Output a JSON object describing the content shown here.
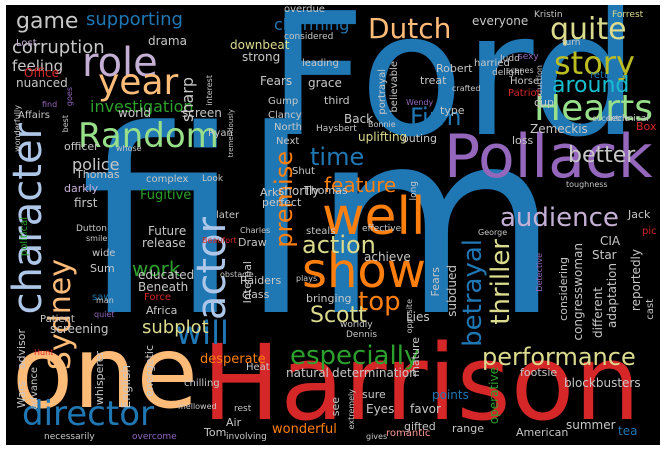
{
  "palette": {
    "background": "#000000",
    "blue": "#1f77b4",
    "light_blue": "#aec7e8",
    "orange": "#ff7f0e",
    "peach": "#ffbb78",
    "green": "#2ca02c",
    "light_green": "#98df8a",
    "red": "#d62728",
    "pink": "#ff9896",
    "purple": "#9467bd",
    "lavender": "#c5b0d5",
    "brown": "#8c564b",
    "tan": "#c49c94",
    "gray": "#7f7f7f",
    "light_gray": "#c7c7c7",
    "olive": "#bcbd22",
    "khaki": "#dbdb8d",
    "cyan": "#17becf",
    "light_cyan": "#9edae5",
    "magenta": "#e377c2"
  },
  "words": {
    "film": "film",
    "ford": "Ford",
    "harrison": "Harrison",
    "one": "one",
    "pollack": "Pollack",
    "show": "show",
    "well": "well",
    "director": "director",
    "character": "character",
    "role": "role",
    "year": "year",
    "random": "Random",
    "hearts": "Hearts",
    "story": "story",
    "quite": "quite",
    "dutch": "Dutch",
    "actor": "actor",
    "sydney": "Sydney",
    "will": "will",
    "action": "action",
    "performance": "performance",
    "especially": "especially",
    "thriller": "thriller",
    "betrayal": "betrayal",
    "audience": "audience",
    "time": "time",
    "top": "top",
    "scott": "Scott",
    "feature": "feature",
    "premise": "premise",
    "firm": "Firm",
    "around": "around",
    "game": "game",
    "supporting": "supporting",
    "charming": "charming",
    "corruption": "corruption",
    "subplot": "subplot",
    "work": "work",
    "better": "better",
    "police": "police",
    "investigation": "investigation",
    "feeling": "feeling",
    "affairs": "Affairs",
    "office": "Office",
    "lost": "Lost",
    "drama": "drama",
    "world": "world",
    "screen": "screen",
    "sharp": "sharp",
    "downbeat": "downbeat",
    "strong": "strong",
    "considered": "considered",
    "leading": "leading",
    "everyone": "everyone",
    "kristin": "Kristin",
    "forrest": "Forrest",
    "judd": "Judd",
    "harried": "harried",
    "scenes": "scenes",
    "sexy": "sexy",
    "turn": "turn",
    "returns": "returns",
    "robert": "Robert",
    "delight": "delight",
    "treat": "treat",
    "crafted": "crafted",
    "production": "production",
    "eccentric": "eccentric",
    "patriot": "Patriot",
    "horse": "Horse",
    "cup": "cup",
    "type": "type",
    "wendy": "Wendy",
    "believable": "believable",
    "portrayal": "portrayal",
    "third": "third",
    "grace": "grace",
    "fears": "Fears",
    "gump": "Gump",
    "ryan": "Ryan",
    "clancy": "Clancy",
    "north": "North",
    "back": "Back",
    "bonnie": "Bonnie",
    "haysbert": "Haysbert",
    "uplifting": "uplifting",
    "outing": "outing",
    "tremendously": "tremendously",
    "zemeckis": "Zemeckis",
    "loss": "loss",
    "technical": "technical",
    "box": "Box",
    "next": "Next",
    "shut": "Shut",
    "thomas": "Thomas",
    "officer": "officer",
    "darkly": "darkly",
    "first": "first",
    "fugitive": "Fugitive",
    "complex": "complex",
    "look": "Look",
    "ark": "Ark",
    "shortly": "shortly",
    "perfect": "perfect",
    "long": "long",
    "jack": "Jack",
    "george": "George",
    "pic": "pic",
    "toughness": "toughness",
    "interest": "interest",
    "whose": "whose",
    "find": "find",
    "best": "best",
    "dutton": "Dutton",
    "patient": "Patient",
    "political": "political",
    "smile": "smile",
    "wide": "wide",
    "sum": "Sum",
    "saw": "saw",
    "future": "Future",
    "later": "later",
    "release": "release",
    "internal": "Internal",
    "charles": "Charles",
    "beaufort": "Beaufort",
    "draw": "Draw",
    "steals": "steals",
    "effective": "effective",
    "achieve": "achieve",
    "subdued": "subdued",
    "cia": "CIA",
    "star": "Star",
    "reportedly": "reportedly",
    "adaptation": "adaptation",
    "congresswoman": "congresswoman",
    "considering": "considering",
    "different": "different",
    "cast": "cast",
    "detective": "Detective",
    "educated": "educated",
    "beneath": "Beneath",
    "africa": "Africa",
    "force": "Force",
    "raiders": "Raiders",
    "class": "class",
    "obstacle": "obstacle",
    "bringing": "bringing",
    "plays": "plays",
    "lies": "Lies",
    "worldly": "worldly",
    "dennis": "Dennis",
    "opposite": "opposite",
    "mature": "mature",
    "gifted": "gifted",
    "wars": "Wars",
    "whisperer": "whisperer",
    "english": "English",
    "energetic": "energetic",
    "desperate": "desperate",
    "heat": "Heat",
    "natural": "natural",
    "determination": "determination",
    "sure": "sure",
    "eyes": "Eyes",
    "favor": "favor",
    "points": "points",
    "footsie": "footsie",
    "blockbusters": "blockbusters",
    "operative": "operative",
    "range": "range",
    "american": "American",
    "summer": "summer",
    "tea": "tea",
    "advisor": "advisor",
    "advance": "advance",
    "hunt": "Hunt",
    "quiet": "quiet",
    "man": "man",
    "screening": "screening",
    "nuanced": "nuanced",
    "chilling": "chilling",
    "mellowed": "mellowed",
    "rest": "rest",
    "air": "Air",
    "tom": "Tom",
    "wonderful": "wonderful",
    "involving": "involving",
    "gives": "gives",
    "extremely": "extremely",
    "romantic": "romantic",
    "necessarily": "necessarily",
    "overcome": "overcome",
    "overdue": "overdue",
    "wonderfully": "wonderfully",
    "goes": "goes",
    "see": "see"
  }
}
